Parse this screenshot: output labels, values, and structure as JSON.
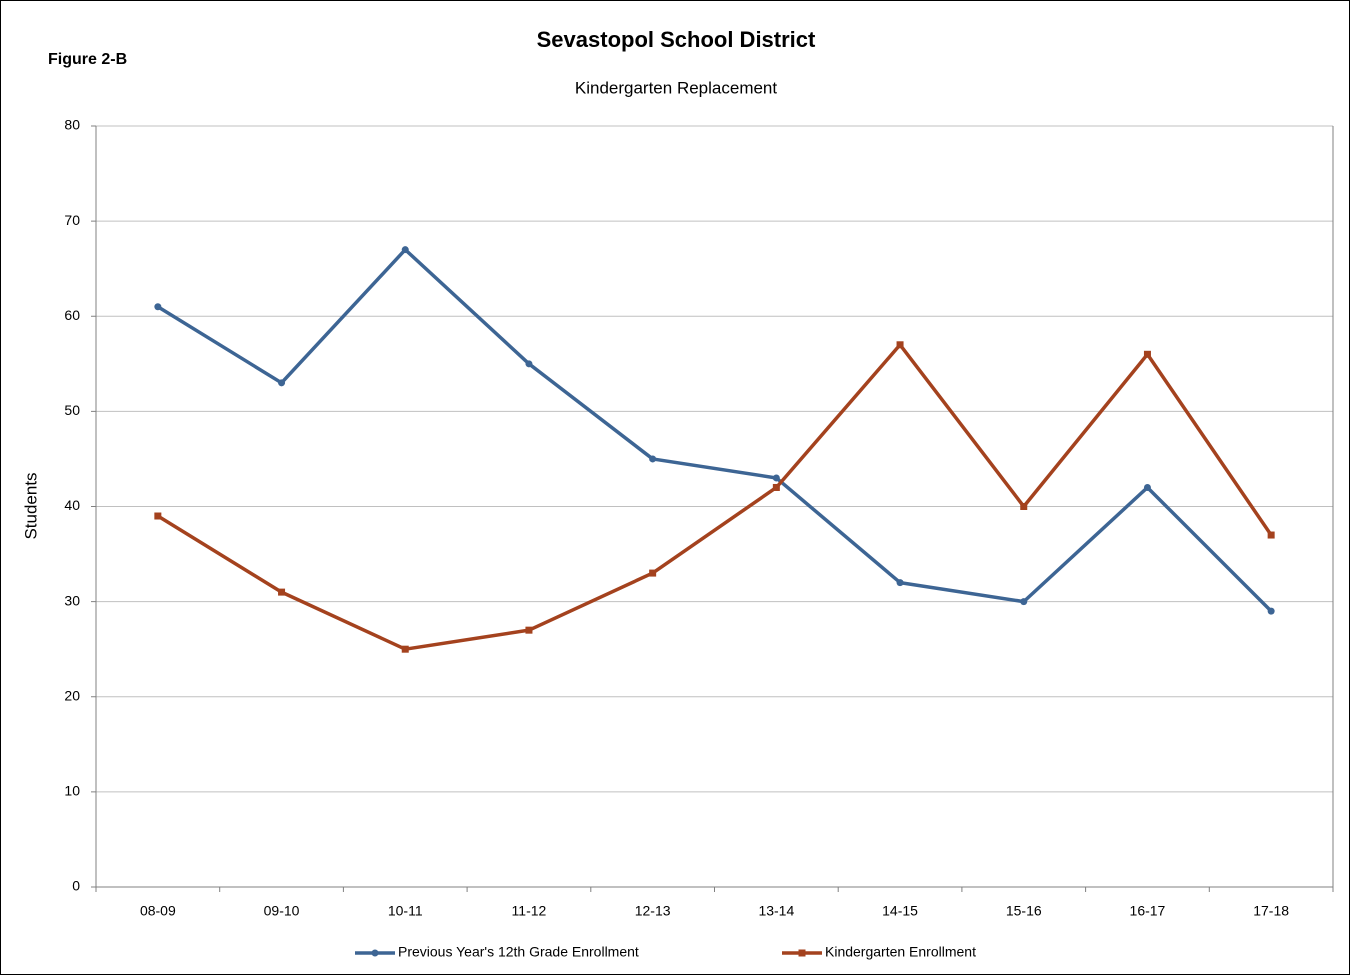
{
  "chart_data": {
    "type": "line",
    "figure_label": "Figure 2-B",
    "title": "Sevastopol School District",
    "subtitle": "Kindergarten Replacement",
    "y_label": "Students",
    "categories": [
      "08-09",
      "09-10",
      "10-11",
      "11-12",
      "12-13",
      "13-14",
      "14-15",
      "15-16",
      "16-17",
      "17-18"
    ],
    "series": [
      {
        "name": "Previous Year's 12th Grade Enrollment",
        "color": "#3d6594",
        "marker": "circle",
        "values": [
          61,
          53,
          67,
          55,
          45,
          43,
          32,
          30,
          42,
          29
        ]
      },
      {
        "name": "Kindergarten Enrollment",
        "color": "#a4421e",
        "marker": "square",
        "values": [
          39,
          31,
          25,
          27,
          33,
          42,
          57,
          40,
          56,
          37
        ]
      }
    ],
    "ylim": [
      0,
      80
    ],
    "yticks": [
      0,
      10,
      20,
      30,
      40,
      50,
      60,
      70,
      80
    ],
    "grid": true,
    "legend": "bottom"
  }
}
